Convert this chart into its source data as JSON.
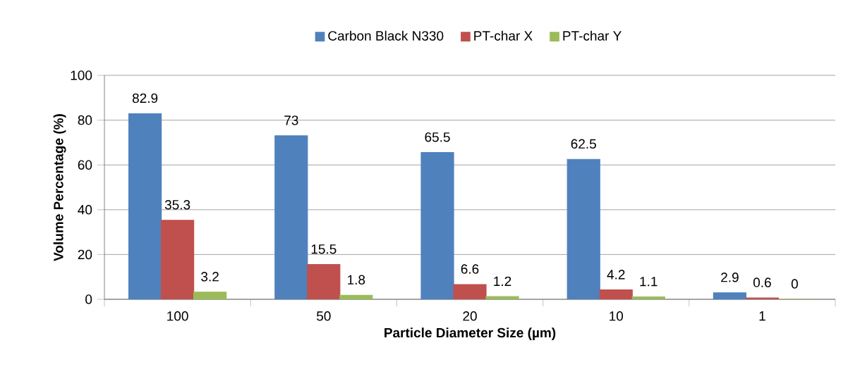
{
  "chart_data": {
    "type": "bar",
    "xlabel": "Particle Diameter Size (µm)",
    "ylabel": "Volume Percentage (%)",
    "categories": [
      "100",
      "50",
      "20",
      "10",
      "1"
    ],
    "series": [
      {
        "name": "Carbon Black N330",
        "color": "#4f81bd",
        "values": [
          82.9,
          73,
          65.5,
          62.5,
          2.9
        ]
      },
      {
        "name": "PT-char X",
        "color": "#c0504d",
        "values": [
          35.3,
          15.5,
          6.6,
          4.2,
          0.6
        ]
      },
      {
        "name": "PT-char Y",
        "color": "#9bbb59",
        "values": [
          3.2,
          1.8,
          1.2,
          1.1,
          0
        ]
      }
    ],
    "ylim": [
      0,
      100
    ],
    "yticks": [
      0,
      20,
      40,
      60,
      80,
      100
    ],
    "grid": "y",
    "legend": "top",
    "data_labels": true
  }
}
